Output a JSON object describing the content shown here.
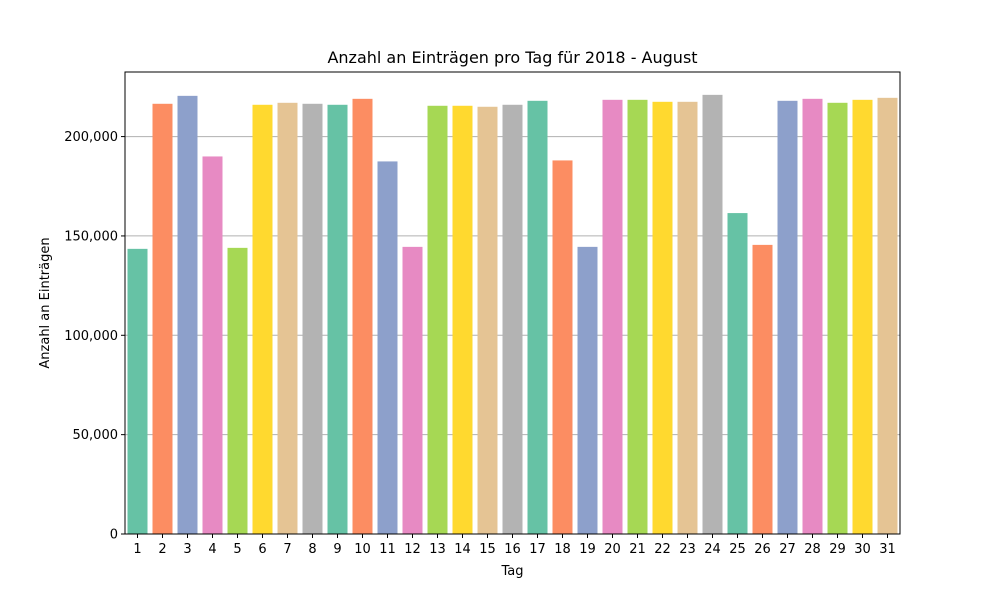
{
  "chart_data": {
    "type": "bar",
    "title": "Anzahl an Einträgen pro Tag für 2018 - August",
    "xlabel": "Tag",
    "ylabel": "Anzahl an Einträgen",
    "categories": [
      "1",
      "2",
      "3",
      "4",
      "5",
      "6",
      "7",
      "8",
      "9",
      "10",
      "11",
      "12",
      "13",
      "14",
      "15",
      "16",
      "17",
      "18",
      "19",
      "20",
      "21",
      "22",
      "23",
      "24",
      "25",
      "26",
      "27",
      "28",
      "29",
      "30",
      "31"
    ],
    "values": [
      143500,
      216500,
      220500,
      190000,
      144000,
      216000,
      217000,
      216500,
      216000,
      219000,
      187500,
      144500,
      215500,
      215500,
      215000,
      216000,
      218000,
      188000,
      144500,
      218500,
      218500,
      217500,
      217500,
      221000,
      161500,
      145500,
      218000,
      219000,
      217000,
      218500,
      219500
    ],
    "ylim": [
      0,
      232500
    ],
    "yticks": [
      0,
      50000,
      100000,
      150000,
      200000
    ],
    "ytick_labels": [
      "0",
      "50,000",
      "100,000",
      "150,000",
      "200,000"
    ],
    "grid": "y",
    "palette": [
      "#66c2a5",
      "#fc8d62",
      "#8da0cb",
      "#e78ac3",
      "#a6d854",
      "#ffd92f",
      "#e5c494",
      "#b3b3b3"
    ]
  }
}
